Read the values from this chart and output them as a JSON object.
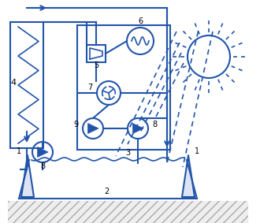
{
  "blue": "#2255AA",
  "bg": "#FFFFFF",
  "fig_width": 3.3,
  "fig_height": 2.83,
  "dpi": 100,
  "pump_r": 13
}
